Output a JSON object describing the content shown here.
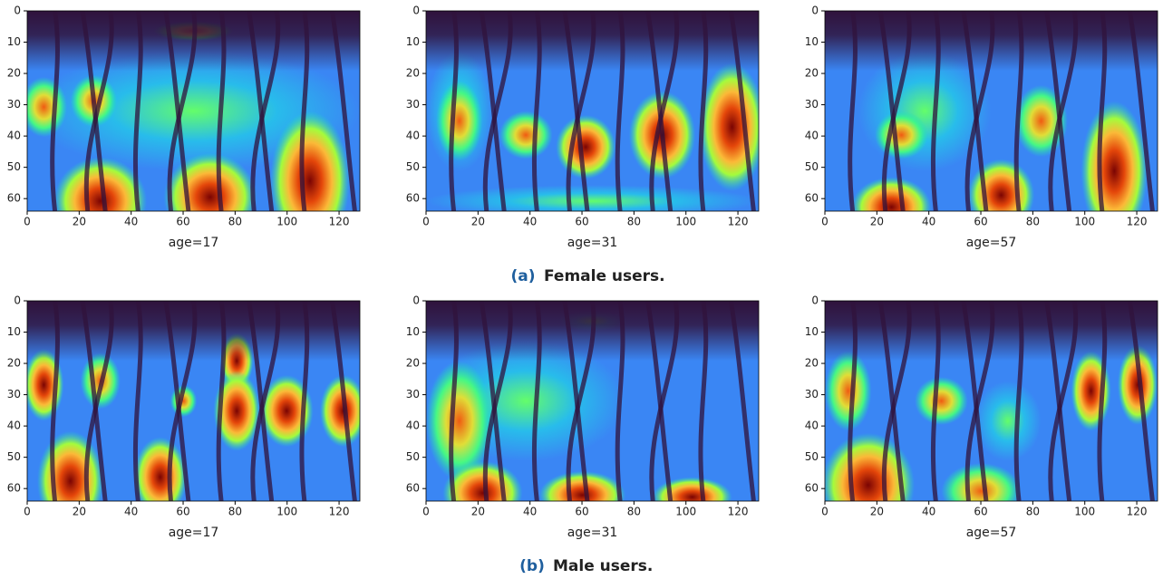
{
  "chart_data": [
    {
      "type": "heatmap",
      "xlabel": "age=17",
      "xlim": [
        0,
        128
      ],
      "ylim": [
        0,
        64
      ],
      "xticks": [
        0,
        20,
        40,
        60,
        80,
        100,
        120
      ],
      "yticks": [
        0,
        10,
        20,
        30,
        40,
        50,
        60
      ]
    },
    {
      "type": "heatmap",
      "xlabel": "age=31",
      "xlim": [
        0,
        128
      ],
      "ylim": [
        0,
        64
      ],
      "xticks": [
        0,
        20,
        40,
        60,
        80,
        100,
        120
      ],
      "yticks": [
        0,
        10,
        20,
        30,
        40,
        50,
        60
      ]
    },
    {
      "type": "heatmap",
      "xlabel": "age=57",
      "xlim": [
        0,
        128
      ],
      "ylim": [
        0,
        64
      ],
      "xticks": [
        0,
        20,
        40,
        60,
        80,
        100,
        120
      ],
      "yticks": [
        0,
        10,
        20,
        30,
        40,
        50,
        60
      ]
    },
    {
      "type": "heatmap",
      "xlabel": "age=17",
      "xlim": [
        0,
        128
      ],
      "ylim": [
        0,
        64
      ],
      "xticks": [
        0,
        20,
        40,
        60,
        80,
        100,
        120
      ],
      "yticks": [
        0,
        10,
        20,
        30,
        40,
        50,
        60
      ]
    },
    {
      "type": "heatmap",
      "xlabel": "age=31",
      "xlim": [
        0,
        128
      ],
      "ylim": [
        0,
        64
      ],
      "xticks": [
        0,
        20,
        40,
        60,
        80,
        100,
        120
      ],
      "yticks": [
        0,
        10,
        20,
        30,
        40,
        50,
        60
      ]
    },
    {
      "type": "heatmap",
      "xlabel": "age=57",
      "xlim": [
        0,
        128
      ],
      "ylim": [
        0,
        64
      ],
      "xticks": [
        0,
        20,
        40,
        60,
        80,
        100,
        120
      ],
      "yticks": [
        0,
        10,
        20,
        30,
        40,
        50,
        60
      ]
    }
  ],
  "captions": [
    {
      "label": "(a)",
      "text": "Female users."
    },
    {
      "label": "(b)",
      "text": "Male users."
    }
  ]
}
